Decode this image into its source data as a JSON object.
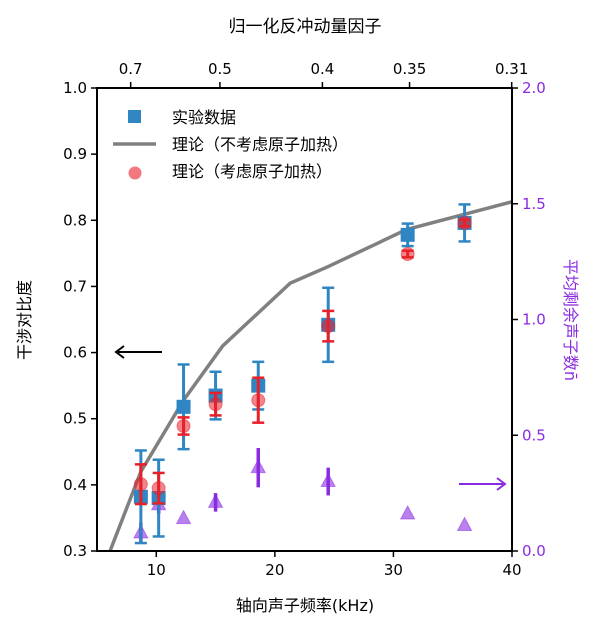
{
  "chart_data": {
    "type": "scatter",
    "xlabel": "轴向声子频率(kHz)",
    "ylabel": "干涉对比度",
    "y2label": "平均剩余声子数n̄",
    "top_xlabel": "归一化反冲动量因子",
    "xlim": [
      5,
      40
    ],
    "ylim": [
      0.3,
      1.0
    ],
    "y2lim": [
      0.0,
      2.0
    ],
    "xticks": [
      10,
      20,
      30,
      40
    ],
    "xtick_labels": [
      "10",
      "20",
      "30",
      "40"
    ],
    "yticks": [
      0.3,
      0.4,
      0.5,
      0.6,
      0.7,
      0.8,
      0.9,
      1.0
    ],
    "ytick_labels": [
      "0.3",
      "0.4",
      "0.5",
      "0.6",
      "0.7",
      "0.8",
      "0.9",
      "1.0"
    ],
    "y2ticks": [
      0.0,
      0.5,
      1.0,
      1.5,
      2.0
    ],
    "y2tick_labels": [
      "0.0",
      "0.5",
      "1.0",
      "1.5",
      "2.0"
    ],
    "top_ticks": [
      0.7,
      0.5,
      0.4,
      0.35,
      0.31
    ],
    "top_tick_labels": [
      "0.7",
      "0.5",
      "0.4",
      "0.35",
      "0.31"
    ],
    "legend_placement": "upper-left",
    "colors": {
      "experiment": "#2f86c3",
      "theory_line": "#808080",
      "theory_heating": "#e8202a",
      "phonon": "#8a2be2"
    },
    "x": [
      8.7,
      10.2,
      12.3,
      15.0,
      18.6,
      24.5,
      31.2,
      36.0
    ],
    "series": [
      {
        "name": "实验数据",
        "marker": "square",
        "axis": "left",
        "values": [
          0.382,
          0.38,
          0.518,
          0.535,
          0.55,
          0.642,
          0.778,
          0.796
        ],
        "errors": [
          0.07,
          0.058,
          0.064,
          0.036,
          0.036,
          0.056,
          0.017,
          0.028
        ]
      },
      {
        "name": "理论（不考虑原子加热）",
        "marker": "line",
        "axis": "left",
        "x": [
          6.1,
          8.7,
          12.3,
          15.6,
          21.3,
          24.5,
          31.1,
          40.0
        ],
        "values": [
          0.3,
          0.42,
          0.528,
          0.61,
          0.705,
          0.73,
          0.786,
          0.828
        ]
      },
      {
        "name": "理论（考虑原子加热）",
        "marker": "circle",
        "axis": "left",
        "values": [
          0.401,
          0.395,
          0.489,
          0.522,
          0.528,
          0.64,
          0.749,
          0.796
        ],
        "errors": [
          0.03,
          0.023,
          0.013,
          0.017,
          0.034,
          0.023,
          0.005,
          0.005
        ]
      },
      {
        "marker": "triangle",
        "axis": "right",
        "values": [
          0.078,
          0.2,
          0.14,
          0.21,
          0.36,
          0.3,
          0.16,
          0.11
        ],
        "errors": [
          0.045,
          0.04,
          0,
          0.04,
          0.085,
          0.06,
          0,
          0
        ]
      }
    ],
    "annotations": [
      {
        "type": "arrow",
        "direction": "left",
        "meaning": "left axis"
      },
      {
        "type": "arrow",
        "direction": "right",
        "meaning": "right axis"
      }
    ]
  }
}
